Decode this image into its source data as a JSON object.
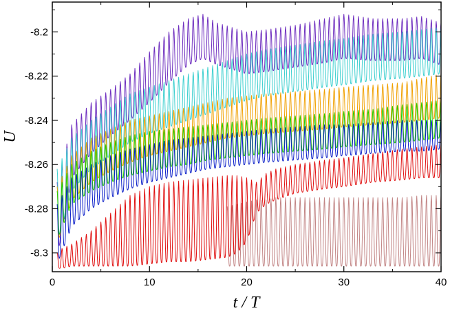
{
  "chart_data": {
    "type": "line",
    "xlabel": "t / T",
    "ylabel": "U",
    "xlim": [
      0,
      40
    ],
    "ylim": [
      -8.3085,
      -8.1865
    ],
    "x_ticks": [
      0,
      10,
      20,
      30,
      40
    ],
    "x_tick_labels": [
      "0",
      "10",
      "20",
      "30",
      "40"
    ],
    "y_ticks": [
      -8.3,
      -8.28,
      -8.26,
      -8.24,
      -8.22,
      -8.2
    ],
    "y_tick_labels": [
      "-8.3",
      "-8.28",
      "-8.26",
      "-8.24",
      "-8.22",
      "-8.2"
    ],
    "grid": false,
    "legend": "none",
    "oscillation_period_t_over_T": 0.5,
    "series": [
      {
        "color": "#6f2fbf",
        "x": [
          0.5,
          2,
          4,
          6,
          8,
          10,
          12,
          14,
          15.5,
          17,
          20,
          22,
          25,
          28,
          30,
          33,
          36,
          38,
          40
        ],
        "upper": [
          -8.268,
          -8.242,
          -8.232,
          -8.226,
          -8.219,
          -8.209,
          -8.2,
          -8.194,
          -8.192,
          -8.196,
          -8.2,
          -8.199,
          -8.197,
          -8.194,
          -8.192,
          -8.194,
          -8.194,
          -8.193,
          -8.196
        ],
        "lower": [
          -8.302,
          -8.266,
          -8.255,
          -8.247,
          -8.24,
          -8.232,
          -8.223,
          -8.215,
          -8.212,
          -8.215,
          -8.219,
          -8.218,
          -8.216,
          -8.214,
          -8.212,
          -8.213,
          -8.213,
          -8.212,
          -8.215
        ]
      },
      {
        "color": "#3ccfcf",
        "x": [
          0.5,
          2,
          4,
          6,
          8,
          10,
          12,
          14,
          16,
          18,
          20,
          22,
          25,
          28,
          30,
          33,
          36,
          38,
          40
        ],
        "upper": [
          -8.262,
          -8.248,
          -8.24,
          -8.234,
          -8.228,
          -8.225,
          -8.222,
          -8.219,
          -8.216,
          -8.213,
          -8.21,
          -8.208,
          -8.206,
          -8.204,
          -8.203,
          -8.201,
          -8.2,
          -8.199,
          -8.198
        ],
        "lower": [
          -8.295,
          -8.272,
          -8.262,
          -8.256,
          -8.25,
          -8.246,
          -8.243,
          -8.24,
          -8.237,
          -8.234,
          -8.231,
          -8.229,
          -8.227,
          -8.225,
          -8.224,
          -8.222,
          -8.221,
          -8.22,
          -8.219
        ]
      },
      {
        "color": "#f0a000",
        "x": [
          0.5,
          2,
          4,
          6,
          8,
          10,
          12,
          14,
          16,
          18,
          20,
          22,
          25,
          28,
          30,
          33,
          36,
          38,
          40
        ],
        "upper": [
          -8.27,
          -8.256,
          -8.248,
          -8.244,
          -8.24,
          -8.238,
          -8.236,
          -8.234,
          -8.232,
          -8.23,
          -8.229,
          -8.228,
          -8.227,
          -8.226,
          -8.225,
          -8.224,
          -8.223,
          -8.221,
          -8.219
        ],
        "lower": [
          -8.296,
          -8.276,
          -8.268,
          -8.263,
          -8.259,
          -8.256,
          -8.254,
          -8.252,
          -8.25,
          -8.248,
          -8.247,
          -8.246,
          -8.245,
          -8.244,
          -8.243,
          -8.242,
          -8.241,
          -8.24,
          -8.239
        ]
      },
      {
        "color": "#22cc00",
        "x": [
          0.5,
          2,
          4,
          6,
          8,
          10,
          12,
          14,
          16,
          18,
          20,
          22,
          25,
          28,
          30,
          33,
          36,
          38,
          40
        ],
        "upper": [
          -8.272,
          -8.26,
          -8.254,
          -8.25,
          -8.247,
          -8.245,
          -8.244,
          -8.243,
          -8.242,
          -8.241,
          -8.24,
          -8.239,
          -8.238,
          -8.237,
          -8.236,
          -8.235,
          -8.233,
          -8.232,
          -8.231
        ],
        "lower": [
          -8.294,
          -8.278,
          -8.272,
          -8.268,
          -8.265,
          -8.263,
          -8.261,
          -8.26,
          -8.258,
          -8.257,
          -8.256,
          -8.255,
          -8.254,
          -8.253,
          -8.252,
          -8.251,
          -8.25,
          -8.249,
          -8.248
        ]
      },
      {
        "color": "#0a1ec8",
        "x": [
          0.5,
          2,
          4,
          6,
          8,
          10,
          12,
          14,
          16,
          18,
          20,
          22,
          25,
          28,
          30,
          33,
          36,
          38,
          40
        ],
        "upper": [
          -8.278,
          -8.266,
          -8.26,
          -8.256,
          -8.253,
          -8.251,
          -8.249,
          -8.248,
          -8.247,
          -8.246,
          -8.245,
          -8.244,
          -8.243,
          -8.242,
          -8.242,
          -8.241,
          -8.24,
          -8.24,
          -8.24
        ],
        "lower": [
          -8.305,
          -8.288,
          -8.28,
          -8.275,
          -8.271,
          -8.268,
          -8.266,
          -8.264,
          -8.262,
          -8.261,
          -8.26,
          -8.259,
          -8.258,
          -8.257,
          -8.256,
          -8.255,
          -8.254,
          -8.254,
          -8.253
        ]
      },
      {
        "color": "#c28585",
        "x": [
          18,
          19,
          20,
          21,
          22,
          23,
          25,
          27,
          28,
          30,
          32,
          34,
          36,
          38,
          40
        ],
        "upper": [
          -8.279,
          -8.278,
          -8.277,
          -8.276,
          -8.276,
          -8.275,
          -8.275,
          -8.275,
          -8.275,
          -8.275,
          -8.275,
          -8.275,
          -8.275,
          -8.274,
          -8.274
        ],
        "lower": [
          -8.306,
          -8.306,
          -8.306,
          -8.306,
          -8.306,
          -8.306,
          -8.306,
          -8.306,
          -8.306,
          -8.306,
          -8.306,
          -8.306,
          -8.306,
          -8.306,
          -8.306
        ]
      },
      {
        "color": "#e01010",
        "x": [
          0.5,
          1,
          2,
          4,
          6,
          8,
          10,
          12,
          14,
          16,
          18,
          19,
          20,
          21,
          22,
          23,
          25,
          28,
          30,
          33,
          36,
          38,
          40
        ],
        "upper": [
          -8.3,
          -8.298,
          -8.296,
          -8.29,
          -8.282,
          -8.274,
          -8.27,
          -8.268,
          -8.267,
          -8.266,
          -8.265,
          -8.265,
          -8.266,
          -8.268,
          -8.264,
          -8.262,
          -8.26,
          -8.258,
          -8.257,
          -8.255,
          -8.253,
          -8.252,
          -8.251
        ],
        "lower": [
          -8.307,
          -8.307,
          -8.306,
          -8.306,
          -8.306,
          -8.306,
          -8.305,
          -8.304,
          -8.304,
          -8.303,
          -8.302,
          -8.3,
          -8.295,
          -8.282,
          -8.278,
          -8.276,
          -8.273,
          -8.271,
          -8.27,
          -8.268,
          -8.267,
          -8.266,
          -8.266
        ]
      }
    ]
  }
}
